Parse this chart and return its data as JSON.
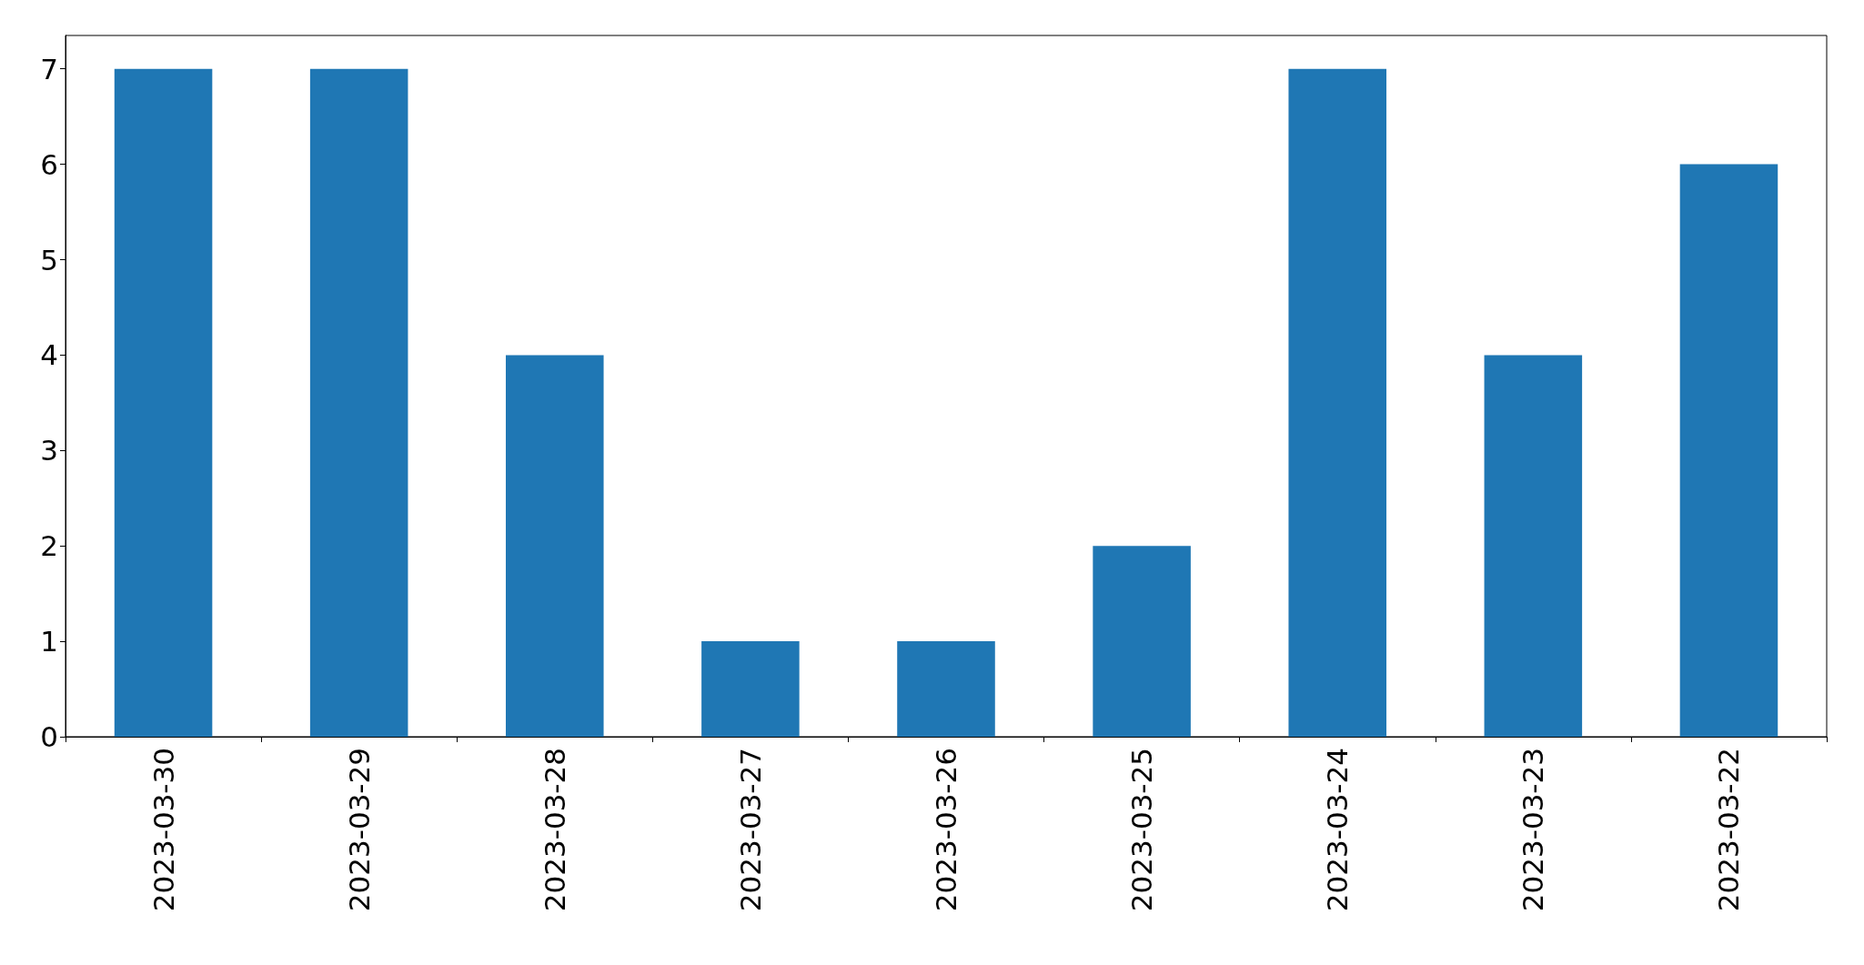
{
  "chart_data": {
    "type": "bar",
    "categories": [
      "2023-03-30",
      "2023-03-29",
      "2023-03-28",
      "2023-03-27",
      "2023-03-26",
      "2023-03-25",
      "2023-03-24",
      "2023-03-23",
      "2023-03-22"
    ],
    "values": [
      7,
      7,
      4,
      1,
      1,
      2,
      7,
      4,
      6
    ],
    "color": "#1f77b4",
    "ylim": [
      0,
      7.35
    ],
    "yticks": [
      0,
      1,
      2,
      3,
      4,
      5,
      6,
      7
    ]
  }
}
